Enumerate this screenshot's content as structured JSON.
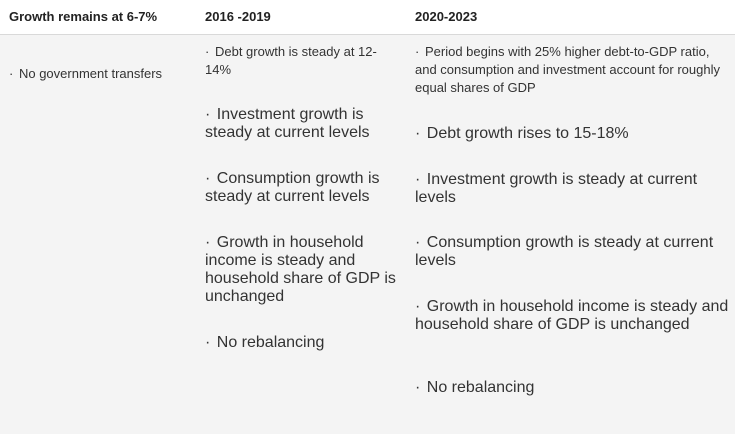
{
  "table": {
    "headers": [
      "Growth remains at 6-7%",
      "2016 -2019",
      "2020-2023"
    ],
    "bullet": "·",
    "col1": [
      "No government transfers"
    ],
    "col2": [
      "Debt growth is steady at 12-14%",
      "Investment growth is steady at current levels",
      "Consumption growth is steady at current levels",
      "Growth in household income is steady and household share of GDP is unchanged",
      "No rebalancing"
    ],
    "col3": [
      "Period begins with 25% higher debt-to-GDP ratio, and consumption and investment account for roughly equal shares of GDP",
      "Debt growth rises to 15-18%",
      "Investment growth is steady at current levels",
      "Consumption growth is steady at current levels",
      "Growth in household income is steady and household share of GDP is unchanged",
      "No rebalancing"
    ]
  }
}
